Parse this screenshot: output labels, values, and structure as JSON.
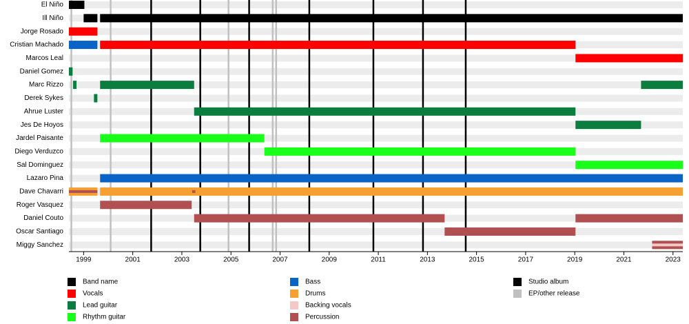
{
  "chart_data": {
    "type": "timeline",
    "xlim": [
      1998.4,
      2023.4
    ],
    "xticks": [
      1999,
      2001,
      2003,
      2005,
      2007,
      2009,
      2011,
      2013,
      2015,
      2017,
      2019,
      2021,
      2023
    ],
    "roles": [
      {
        "name": "Band name",
        "color": "#000000"
      },
      {
        "name": "Vocals",
        "color": "#ff0000"
      },
      {
        "name": "Lead guitar",
        "color": "#0b7d3e"
      },
      {
        "name": "Rhythm guitar",
        "color": "#1aff1a"
      },
      {
        "name": "Bass",
        "color": "#0a64c8"
      },
      {
        "name": "Drums",
        "color": "#f5a030"
      },
      {
        "name": "Backing vocals",
        "color": "#f5c8c8"
      },
      {
        "name": "Percussion",
        "color": "#b05050"
      }
    ],
    "release_lines": [
      {
        "name": "Studio album",
        "color": "#000000",
        "x": [
          2001.75,
          2003.75,
          2005.74,
          2008.19,
          2010.8,
          2012.82,
          2014.56
        ]
      },
      {
        "name": "EP/other release",
        "color": "#c0c0c0",
        "x": [
          1998.5,
          2000.1,
          2004.9,
          2006.7,
          2006.84
        ]
      }
    ],
    "rows": [
      {
        "name": "El Niño",
        "spans": [
          {
            "role": "Band name",
            "start": 1998.4,
            "end": 1999.03
          }
        ]
      },
      {
        "name": "Ill Niño",
        "spans": [
          {
            "role": "Band name",
            "start": 1999.0,
            "end": 1999.56
          },
          {
            "role": "Band name",
            "start": 1999.67,
            "end": 2023.4
          }
        ]
      },
      {
        "name": "Jorge Rosado",
        "spans": [
          {
            "role": "Vocals",
            "start": 1998.4,
            "end": 1999.56
          }
        ]
      },
      {
        "name": "Cristian Machado",
        "spans": [
          {
            "role": "Bass",
            "start": 1998.4,
            "end": 1999.56
          },
          {
            "role": "Vocals",
            "start": 1999.67,
            "end": 2019.03
          }
        ]
      },
      {
        "name": "Marcos Leal",
        "spans": [
          {
            "role": "Vocals",
            "start": 2019.03,
            "end": 2023.4
          }
        ]
      },
      {
        "name": "Daniel Gomez",
        "spans": [
          {
            "role": "Lead guitar",
            "start": 1998.4,
            "end": 1998.55
          }
        ]
      },
      {
        "name": "Marc Rizzo",
        "spans": [
          {
            "role": "Lead guitar",
            "start": 1998.57,
            "end": 1998.71
          },
          {
            "role": "Lead guitar",
            "start": 1999.67,
            "end": 2003.5
          },
          {
            "role": "Lead guitar",
            "start": 2021.7,
            "end": 2023.4
          }
        ]
      },
      {
        "name": "Derek Sykes",
        "spans": [
          {
            "role": "Lead guitar",
            "start": 1999.42,
            "end": 1999.56
          }
        ]
      },
      {
        "name": "Ahrue Luster",
        "spans": [
          {
            "role": "Lead guitar",
            "start": 2003.5,
            "end": 2019.03
          }
        ]
      },
      {
        "name": "Jes De Hoyos",
        "spans": [
          {
            "role": "Lead guitar",
            "start": 2019.03,
            "end": 2021.7
          }
        ]
      },
      {
        "name": "Jardel Paisante",
        "spans": [
          {
            "role": "Rhythm guitar",
            "start": 1999.67,
            "end": 2006.36
          }
        ]
      },
      {
        "name": "Diego Verduzco",
        "spans": [
          {
            "role": "Rhythm guitar",
            "start": 2006.36,
            "end": 2019.03
          }
        ]
      },
      {
        "name": "Sal Dominguez",
        "spans": [
          {
            "role": "Rhythm guitar",
            "start": 2019.03,
            "end": 2023.4
          }
        ]
      },
      {
        "name": "Lazaro Pina",
        "spans": [
          {
            "role": "Bass",
            "start": 1999.67,
            "end": 2023.4
          }
        ]
      },
      {
        "name": "Dave Chavarri",
        "spans": [
          {
            "role": "Drums",
            "start": 1998.4,
            "end": 1999.56
          },
          {
            "role": "Drums",
            "start": 1999.67,
            "end": 2023.4
          },
          {
            "role": "Percussion",
            "start": 1998.4,
            "end": 1999.56,
            "overlay": true
          },
          {
            "role": "Percussion",
            "start": 2003.42,
            "end": 2003.55,
            "overlay": true
          }
        ]
      },
      {
        "name": "Roger Vasquez",
        "spans": [
          {
            "role": "Percussion",
            "start": 1999.67,
            "end": 2003.4
          }
        ]
      },
      {
        "name": "Daniel Couto",
        "spans": [
          {
            "role": "Percussion",
            "start": 2003.5,
            "end": 2013.7
          },
          {
            "role": "Percussion",
            "start": 2019.03,
            "end": 2023.4
          }
        ]
      },
      {
        "name": "Oscar Santiago",
        "spans": [
          {
            "role": "Percussion",
            "start": 2013.7,
            "end": 2019.03
          }
        ]
      },
      {
        "name": "Miggy Sanchez",
        "spans": [
          {
            "role": "Percussion",
            "start": 2022.15,
            "end": 2023.4
          },
          {
            "role": "Backing vocals",
            "start": 2022.15,
            "end": 2023.4,
            "overlay": true
          }
        ]
      }
    ]
  }
}
